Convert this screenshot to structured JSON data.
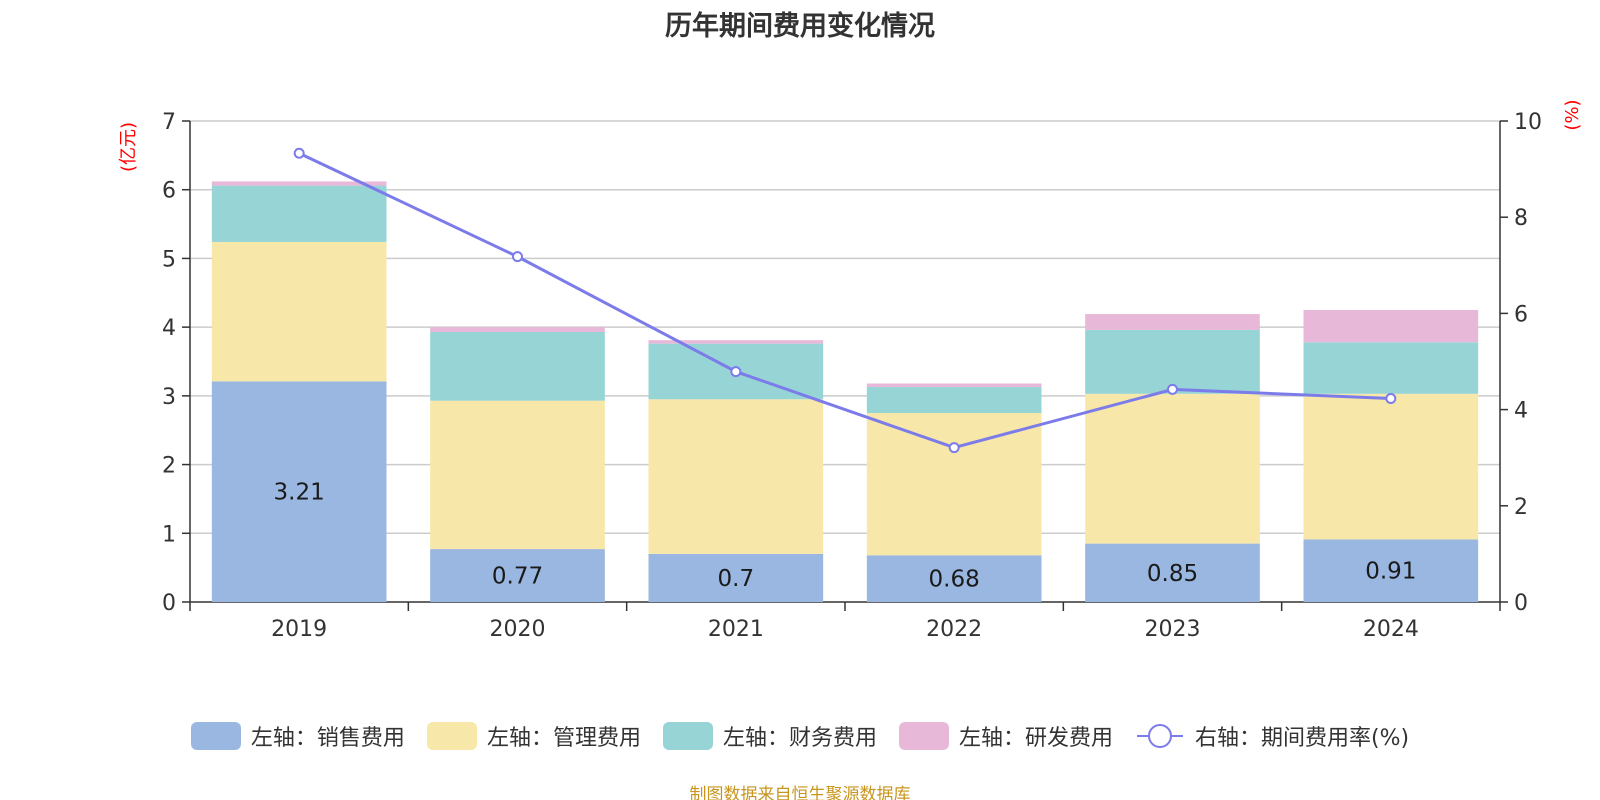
{
  "chart_data": {
    "type": "bar",
    "stacked": true,
    "title": "历年期间费用变化情况",
    "categories": [
      "2019",
      "2020",
      "2021",
      "2022",
      "2023",
      "2024"
    ],
    "series": [
      {
        "name": "左轴：销售费用",
        "axis": "left",
        "color": "#9ab7e2",
        "values": [
          3.21,
          0.77,
          0.7,
          0.68,
          0.85,
          0.91
        ]
      },
      {
        "name": "左轴：管理费用",
        "axis": "left",
        "color": "#f7e7a8",
        "values": [
          2.03,
          2.16,
          2.25,
          2.07,
          2.18,
          2.12
        ]
      },
      {
        "name": "左轴：财务费用",
        "axis": "left",
        "color": "#97d4d5",
        "values": [
          0.82,
          1.0,
          0.81,
          0.38,
          0.93,
          0.75
        ]
      },
      {
        "name": "左轴：研发费用",
        "axis": "left",
        "color": "#e8b8d8",
        "values": [
          0.06,
          0.07,
          0.05,
          0.05,
          0.23,
          0.47
        ]
      },
      {
        "name": "右轴：期间费用率(%)",
        "axis": "right",
        "type": "line",
        "color": "#7b7bea",
        "values": [
          9.33,
          7.18,
          4.79,
          3.21,
          4.42,
          4.23
        ]
      }
    ],
    "bar_labels": [
      "3.21",
      "0.77",
      "0.7",
      "0.68",
      "0.85",
      "0.91"
    ],
    "left_axis": {
      "unit": "(亿元)",
      "ylim": [
        0,
        7
      ],
      "ticks": [
        "0",
        "1",
        "2",
        "3",
        "4",
        "5",
        "6",
        "7"
      ]
    },
    "right_axis": {
      "unit": "(%)",
      "ylim": [
        0,
        10
      ],
      "ticks": [
        "0",
        "2",
        "4",
        "6",
        "8",
        "10"
      ]
    },
    "grid": true,
    "legend_position": "bottom"
  },
  "source_note": "制图数据来自恒生聚源数据库"
}
